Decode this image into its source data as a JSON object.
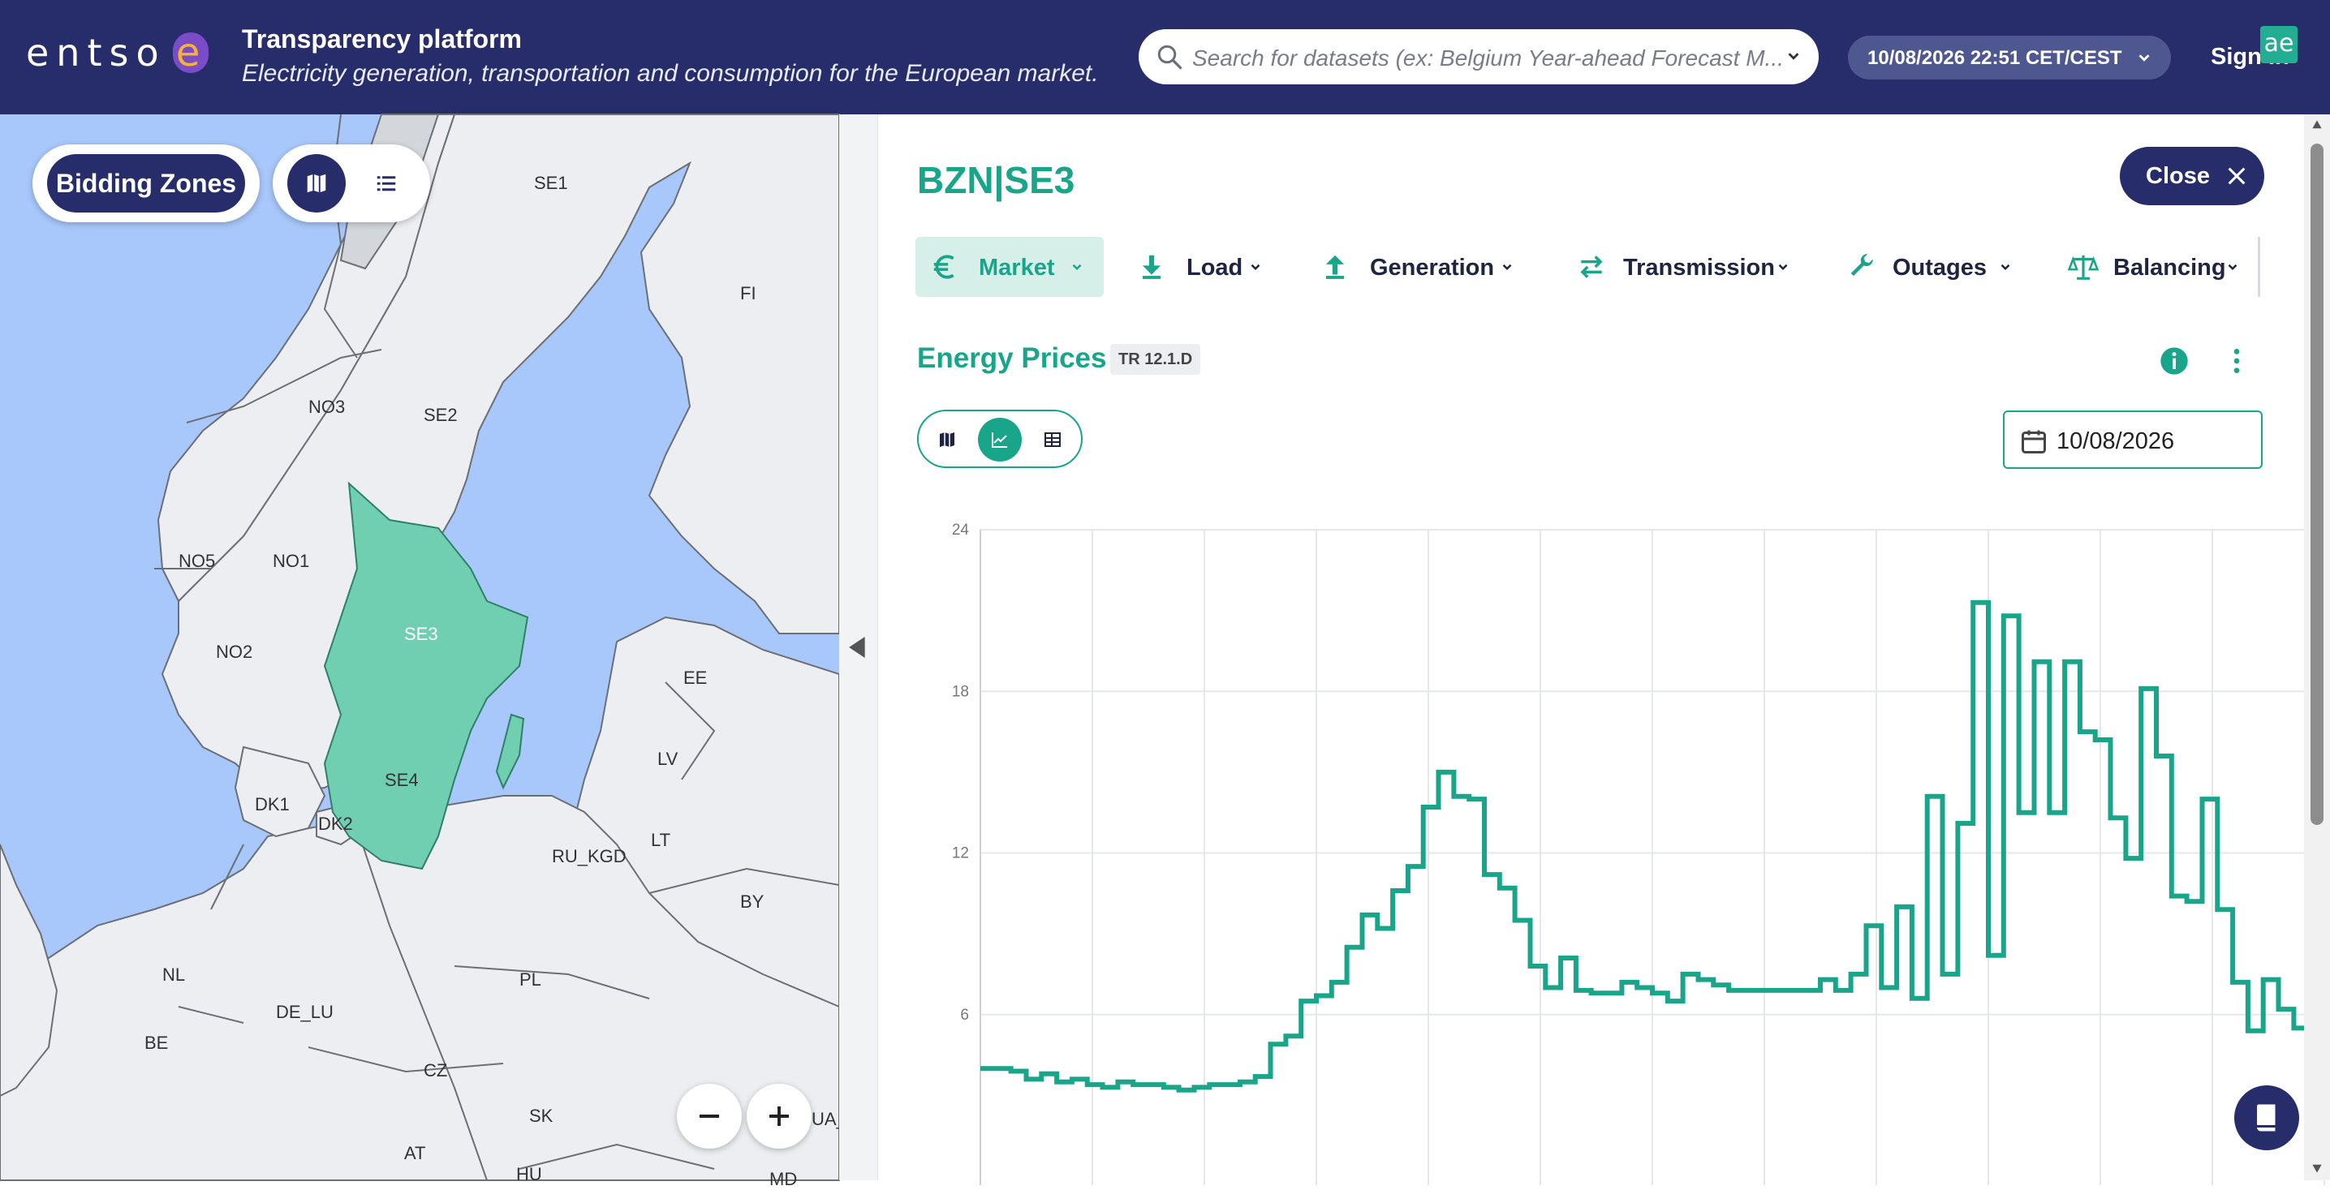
{
  "header": {
    "logo_text": "entso",
    "logo_e": "e",
    "title": "Transparency platform",
    "subtitle": "Electricity generation, transportation and consumption for the European market.",
    "search_placeholder": "Search for datasets (ex: Belgium Year-ahead Forecast M...",
    "datetime": "10/08/2026 22:51 CET/CEST",
    "sign_in": "Sign in",
    "ae_badge": "ae"
  },
  "map": {
    "bidding_zones_label": "Bidding Zones",
    "selected_zone": "SE3",
    "labels": [
      "SE1",
      "FI",
      "NO3",
      "SE2",
      "NO5",
      "NO1",
      "SE3",
      "NO2",
      "EE",
      "SE4",
      "LV",
      "DK1",
      "DK2",
      "LT",
      "RU_KGD",
      "BY",
      "NL",
      "PL",
      "DE_LU",
      "BE",
      "CZ",
      "SK",
      "AT",
      "HU",
      "UA_",
      "MD"
    ],
    "colors": {
      "water": "#a8c7fa",
      "land": "#eceef1",
      "selected": "#6fcfb0",
      "border": "#6b6f76"
    }
  },
  "panel": {
    "zone_title": "BZN|SE3",
    "close_label": "Close",
    "tabs": [
      {
        "label": "Market",
        "icon": "euro-icon",
        "active": true
      },
      {
        "label": "Load",
        "icon": "download-icon",
        "active": false
      },
      {
        "label": "Generation",
        "icon": "upload-icon",
        "active": false
      },
      {
        "label": "Transmission",
        "icon": "swap-icon",
        "active": false
      },
      {
        "label": "Outages",
        "icon": "wrench-icon",
        "active": false
      },
      {
        "label": "Balancing",
        "icon": "scale-icon",
        "active": false
      }
    ],
    "section_title": "Energy Prices",
    "section_badge": "TR 12.1.D",
    "date_value": "10/08/2026",
    "accent": "#18a589",
    "header_bg": "#262d6a"
  },
  "chart_data": {
    "type": "line",
    "step": true,
    "ylim": [
      0,
      24
    ],
    "yticks": [
      6,
      12,
      18,
      24
    ],
    "grid": true,
    "x_interval_minutes": 15,
    "series": [
      {
        "values": [
          4.0,
          4.0,
          3.9,
          3.6,
          3.8,
          3.5,
          3.6,
          3.4,
          3.3,
          3.5,
          3.4,
          3.4,
          3.3,
          3.2,
          3.3,
          3.4,
          3.4,
          3.5,
          3.7,
          4.9,
          5.2,
          6.5,
          6.7,
          7.2,
          8.5,
          9.7,
          9.2,
          10.6,
          11.5,
          13.7,
          15.0,
          14.1,
          14.0,
          11.2,
          10.7,
          9.5,
          7.8,
          7.0,
          8.1,
          6.9,
          6.8,
          6.8,
          7.2,
          7.0,
          6.8,
          6.5,
          7.5,
          7.3,
          7.1,
          6.9,
          6.9,
          6.9,
          6.9,
          6.9,
          6.9,
          7.3,
          6.9,
          7.5,
          9.3,
          7.0,
          10.0,
          6.6,
          14.1,
          7.5,
          13.1,
          21.3,
          8.2,
          20.8,
          13.5,
          19.1,
          13.5,
          19.1,
          16.5,
          16.2,
          13.3,
          11.8,
          18.1,
          15.6,
          10.4,
          10.2,
          14.0,
          9.9,
          7.2,
          5.4,
          7.3,
          6.2,
          5.5,
          5.0
        ]
      }
    ]
  }
}
